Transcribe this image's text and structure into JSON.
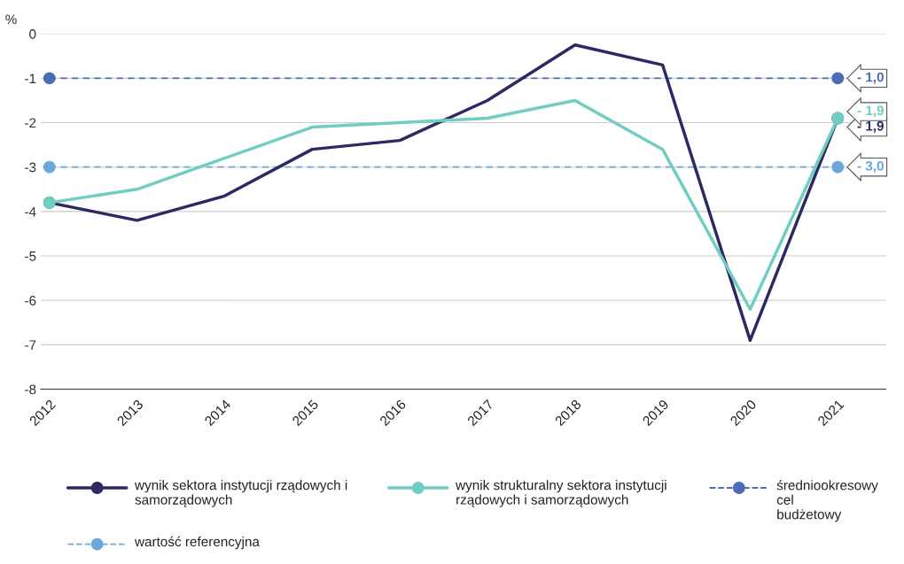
{
  "chart_data": {
    "type": "line",
    "ylabel": "%",
    "categories": [
      "2012",
      "2013",
      "2014",
      "2015",
      "2016",
      "2017",
      "2018",
      "2019",
      "2020",
      "2021"
    ],
    "ylim": [
      -8,
      0
    ],
    "yticks": [
      0,
      -1,
      -2,
      -3,
      -4,
      -5,
      -6,
      -7,
      -8
    ],
    "grid": "y",
    "legend": "bottom",
    "series": [
      {
        "name": "wynik sektora instytucji rządowych i samorządowych",
        "color": "#2b2a62",
        "line_style": "solid",
        "values": [
          -3.8,
          -4.2,
          -3.65,
          -2.6,
          -2.4,
          -1.5,
          -0.25,
          -0.7,
          -6.9,
          -1.9
        ],
        "value_labels": [
          null,
          null,
          null,
          null,
          null,
          null,
          null,
          null,
          null,
          "- 1,9"
        ]
      },
      {
        "name": "wynik strukturalny sektora instytucji rządowych i samorządowych",
        "color": "#6fcdc2",
        "line_style": "solid",
        "values": [
          -3.8,
          -3.5,
          -2.8,
          -2.1,
          -2.0,
          -1.9,
          -1.5,
          -2.6,
          -6.2,
          -1.9
        ],
        "value_labels": [
          null,
          null,
          null,
          null,
          null,
          null,
          null,
          null,
          null,
          "- 1,9"
        ]
      },
      {
        "name": "średniookresowy cel budżetowy",
        "color": "#4a6db5",
        "line_style": "dashed",
        "values": [
          -1,
          -1,
          -1,
          -1,
          -1,
          -1,
          -1,
          -1,
          -1,
          -1
        ],
        "value_labels": [
          null,
          null,
          null,
          null,
          null,
          null,
          null,
          null,
          null,
          "- 1,0"
        ]
      },
      {
        "name": "wartość referencyjna",
        "color": "#6aa8dc",
        "line_style": "dashed",
        "values": [
          -3,
          -3,
          -3,
          -3,
          -3,
          -3,
          -3,
          -3,
          -3,
          -3
        ],
        "value_labels": [
          null,
          null,
          null,
          null,
          null,
          null,
          null,
          null,
          null,
          "- 3,0"
        ]
      }
    ]
  }
}
